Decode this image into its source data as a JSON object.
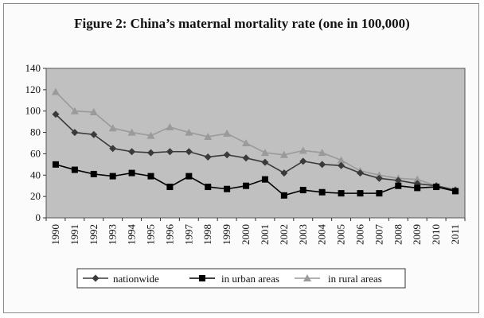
{
  "chart_data": {
    "type": "line",
    "title": "Figure 2:   China’s maternal mortality rate (one in 100,000)",
    "x": [
      "1990",
      "1991",
      "1992",
      "1993",
      "1994",
      "1995",
      "1996",
      "1997",
      "1998",
      "1999",
      "2000",
      "2001",
      "2002",
      "2003",
      "2004",
      "2005",
      "2006",
      "2007",
      "2008",
      "2009",
      "2010",
      "2011"
    ],
    "ylim": [
      0,
      140
    ],
    "yticks": [
      0,
      20,
      40,
      60,
      80,
      100,
      120,
      140
    ],
    "grid": false,
    "legend": "bottom",
    "series": [
      {
        "name": "nationwide",
        "marker": "diamond",
        "color": "#3a3a3a",
        "values": [
          97,
          80,
          78,
          65,
          62,
          61,
          62,
          62,
          57,
          59,
          56,
          52,
          42,
          53,
          50,
          49,
          42,
          37,
          35,
          32,
          30,
          26
        ]
      },
      {
        "name": "in urban areas",
        "marker": "square",
        "color": "#000000",
        "values": [
          50,
          45,
          41,
          39,
          42,
          39,
          29,
          39,
          29,
          27,
          30,
          36,
          21,
          26,
          24,
          23,
          23,
          23,
          30,
          28,
          29,
          25
        ]
      },
      {
        "name": "in rural areas",
        "marker": "triangle",
        "color": "#9a9a9a",
        "values": [
          118,
          100,
          99,
          84,
          80,
          77,
          85,
          80,
          76,
          79,
          70,
          61,
          59,
          63,
          61,
          54,
          44,
          40,
          37,
          36,
          30,
          26
        ]
      }
    ]
  },
  "colors": {
    "plot_bg": "#c0c0c0",
    "frame": "#8a8a8a"
  }
}
